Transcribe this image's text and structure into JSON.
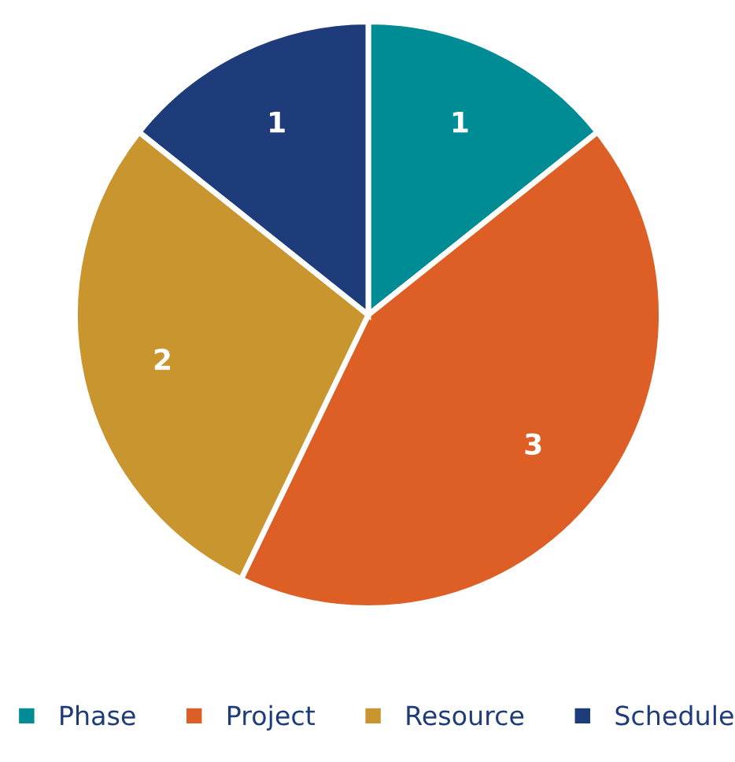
{
  "chart_data": {
    "type": "pie",
    "categories": [
      "Phase",
      "Project",
      "Resource",
      "Schedule"
    ],
    "values": [
      1,
      3,
      2,
      1
    ],
    "colors": [
      "#008c95",
      "#de5f26",
      "#c9952f",
      "#1f3c7a"
    ],
    "data_labels": true,
    "legend": "bottom"
  }
}
